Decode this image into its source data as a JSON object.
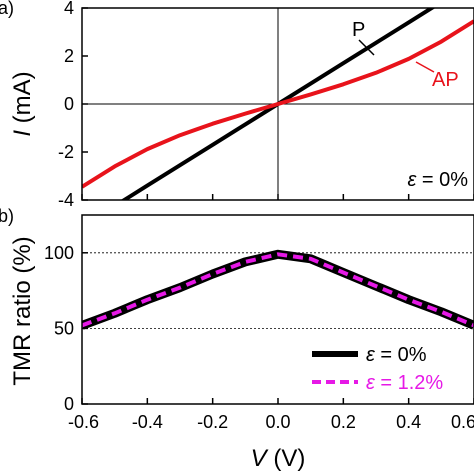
{
  "chart_data": [
    {
      "type": "line",
      "panel_label": "a)",
      "ylabel_italic": "I",
      "ylabel_rest": " (mA)",
      "xlim": [
        -0.6,
        0.6
      ],
      "ylim": [
        -4,
        4
      ],
      "yticks": [
        4,
        2,
        0,
        -2,
        -4
      ],
      "ytick_labels": [
        "4",
        "2",
        "0",
        "-2",
        "-4"
      ],
      "zero_lines": true,
      "series": [
        {
          "name": "P",
          "color": "#000000",
          "x": [
            -0.6,
            -0.5,
            -0.4,
            -0.3,
            -0.2,
            -0.1,
            0.0,
            0.1,
            0.2,
            0.3,
            0.4,
            0.5,
            0.6
          ],
          "y": [
            -5.1,
            -4.25,
            -3.4,
            -2.55,
            -1.7,
            -0.85,
            0.0,
            0.85,
            1.7,
            2.55,
            3.4,
            4.25,
            5.1
          ]
        },
        {
          "name": "AP",
          "color": "#e8131b",
          "x": [
            -0.6,
            -0.5,
            -0.4,
            -0.3,
            -0.2,
            -0.1,
            0.0,
            0.1,
            0.2,
            0.3,
            0.4,
            0.5,
            0.6
          ],
          "y": [
            -3.45,
            -2.6,
            -1.88,
            -1.3,
            -0.82,
            -0.4,
            0.0,
            0.4,
            0.82,
            1.3,
            1.88,
            2.6,
            3.45
          ]
        }
      ],
      "annotation_symbol": "ε",
      "annotation_rest": " = 0%"
    },
    {
      "type": "line",
      "panel_label": "b)",
      "ylabel": "TMR ratio (%)",
      "xlabel_italic": "V",
      "xlabel_rest": " (V)",
      "xlim": [
        -0.6,
        0.6
      ],
      "ylim": [
        0,
        125
      ],
      "yticks": [
        0,
        50,
        100
      ],
      "ytick_labels": [
        "0",
        "50",
        "100"
      ],
      "xticks": [
        -0.6,
        -0.4,
        -0.2,
        0.0,
        0.2,
        0.4,
        0.6
      ],
      "xtick_labels": [
        "-0.6",
        "-0.4",
        "-0.2",
        "0.0",
        "0.2",
        "0.4",
        "0.6"
      ],
      "reference_lines": [
        50,
        100
      ],
      "x": [
        -0.6,
        -0.5,
        -0.4,
        -0.3,
        -0.2,
        -0.1,
        0.0,
        0.1,
        0.2,
        0.3,
        0.4,
        0.5,
        0.6
      ],
      "series": [
        {
          "legend_symbol": "ε",
          "legend_rest": " = 0%",
          "color": "#000000",
          "style": "solid",
          "y": [
            52,
            60,
            69,
            77,
            86,
            94,
            99,
            96,
            87,
            78,
            69,
            61,
            52
          ]
        },
        {
          "legend_symbol": "ε",
          "legend_rest": " = 1.2%",
          "color": "#e619e6",
          "style": "dashed",
          "y": [
            52,
            60,
            69,
            77,
            86,
            94,
            99,
            96,
            87,
            78,
            69,
            61,
            52
          ]
        }
      ],
      "legend_position": "bottom-right"
    }
  ]
}
